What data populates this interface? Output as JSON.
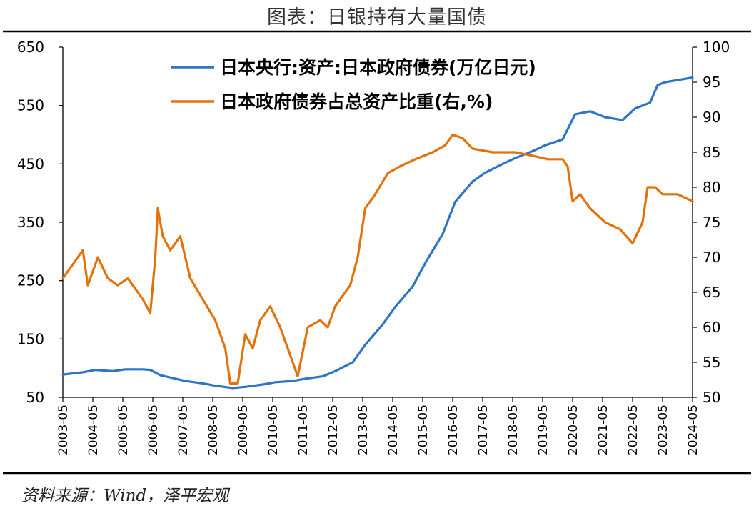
{
  "title": "图表：日银持有大量国债",
  "source": "资料来源：Wind，泽平宏观",
  "colors": {
    "series_assets": "#2E75C6",
    "series_ratio": "#E2730C",
    "axis": "#000000"
  },
  "chart_data": {
    "type": "line",
    "x_tick_labels": [
      "2003-05",
      "2004-05",
      "2005-05",
      "2006-05",
      "2007-05",
      "2008-05",
      "2009-05",
      "2010-05",
      "2011-05",
      "2012-05",
      "2013-05",
      "2014-05",
      "2015-05",
      "2016-05",
      "2017-05",
      "2018-05",
      "2019-05",
      "2020-05",
      "2021-05",
      "2022-05",
      "2023-05",
      "2024-05"
    ],
    "xlim": [
      "2003-05",
      "2024-05"
    ],
    "y_left": {
      "ylim": [
        50,
        650
      ],
      "ticks": [
        50,
        150,
        250,
        350,
        450,
        550,
        650
      ]
    },
    "y_right": {
      "ylim": [
        50,
        100
      ],
      "ticks": [
        50,
        55,
        60,
        65,
        70,
        75,
        80,
        85,
        90,
        95,
        100
      ]
    },
    "legend_position": "top-center",
    "series": [
      {
        "name": "日本央行:资产:日本政府债券(万亿日元)",
        "axis": "left",
        "points": [
          [
            "2003-05",
            89
          ],
          [
            "2004-01",
            93
          ],
          [
            "2004-06",
            97
          ],
          [
            "2005-01",
            95
          ],
          [
            "2005-06",
            98
          ],
          [
            "2006-01",
            98
          ],
          [
            "2006-04",
            97
          ],
          [
            "2006-08",
            88
          ],
          [
            "2007-01",
            83
          ],
          [
            "2007-06",
            78
          ],
          [
            "2008-01",
            74
          ],
          [
            "2008-06",
            70
          ],
          [
            "2009-01",
            66
          ],
          [
            "2009-06",
            68
          ],
          [
            "2010-01",
            72
          ],
          [
            "2010-06",
            76
          ],
          [
            "2011-01",
            78
          ],
          [
            "2011-06",
            82
          ],
          [
            "2012-01",
            86
          ],
          [
            "2012-06",
            95
          ],
          [
            "2013-01",
            110
          ],
          [
            "2013-06",
            140
          ],
          [
            "2014-01",
            175
          ],
          [
            "2014-06",
            205
          ],
          [
            "2015-01",
            240
          ],
          [
            "2015-06",
            280
          ],
          [
            "2016-01",
            330
          ],
          [
            "2016-06",
            385
          ],
          [
            "2017-01",
            420
          ],
          [
            "2017-06",
            435
          ],
          [
            "2018-01",
            450
          ],
          [
            "2018-06",
            460
          ],
          [
            "2019-01",
            472
          ],
          [
            "2019-06",
            482
          ],
          [
            "2020-01",
            492
          ],
          [
            "2020-06",
            535
          ],
          [
            "2020-12",
            540
          ],
          [
            "2021-06",
            530
          ],
          [
            "2022-01",
            525
          ],
          [
            "2022-06",
            545
          ],
          [
            "2022-12",
            555
          ],
          [
            "2023-03",
            585
          ],
          [
            "2023-06",
            590
          ],
          [
            "2024-01",
            595
          ],
          [
            "2024-05",
            598
          ]
        ]
      },
      {
        "name": "日本政府债券占总资产比重(右,%)",
        "axis": "right",
        "points": [
          [
            "2003-05",
            67
          ],
          [
            "2003-09",
            69
          ],
          [
            "2004-01",
            71
          ],
          [
            "2004-03",
            66
          ],
          [
            "2004-07",
            70
          ],
          [
            "2004-11",
            67
          ],
          [
            "2005-03",
            66
          ],
          [
            "2005-07",
            67
          ],
          [
            "2006-01",
            64
          ],
          [
            "2006-04",
            62
          ],
          [
            "2006-06",
            70
          ],
          [
            "2006-07",
            77
          ],
          [
            "2006-09",
            73
          ],
          [
            "2006-12",
            71
          ],
          [
            "2007-04",
            73
          ],
          [
            "2007-08",
            67
          ],
          [
            "2008-01",
            64
          ],
          [
            "2008-06",
            61
          ],
          [
            "2008-10",
            57
          ],
          [
            "2008-12",
            52
          ],
          [
            "2009-03",
            52
          ],
          [
            "2009-06",
            59
          ],
          [
            "2009-09",
            57
          ],
          [
            "2009-12",
            61
          ],
          [
            "2010-04",
            63
          ],
          [
            "2010-08",
            60
          ],
          [
            "2010-12",
            56
          ],
          [
            "2011-03",
            53
          ],
          [
            "2011-07",
            60
          ],
          [
            "2011-12",
            61
          ],
          [
            "2012-03",
            60
          ],
          [
            "2012-06",
            63
          ],
          [
            "2012-12",
            66
          ],
          [
            "2013-03",
            70
          ],
          [
            "2013-06",
            77
          ],
          [
            "2013-10",
            79
          ],
          [
            "2014-03",
            82
          ],
          [
            "2014-08",
            83
          ],
          [
            "2015-02",
            84
          ],
          [
            "2015-09",
            85
          ],
          [
            "2016-02",
            86
          ],
          [
            "2016-05",
            87.5
          ],
          [
            "2016-09",
            87
          ],
          [
            "2017-01",
            85.5
          ],
          [
            "2017-09",
            85
          ],
          [
            "2018-06",
            85
          ],
          [
            "2019-01",
            84.5
          ],
          [
            "2019-07",
            84
          ],
          [
            "2020-01",
            84
          ],
          [
            "2020-03",
            83
          ],
          [
            "2020-05",
            78
          ],
          [
            "2020-08",
            79
          ],
          [
            "2020-12",
            77
          ],
          [
            "2021-06",
            75
          ],
          [
            "2021-12",
            74
          ],
          [
            "2022-05",
            72
          ],
          [
            "2022-09",
            75
          ],
          [
            "2022-11",
            80
          ],
          [
            "2023-02",
            80
          ],
          [
            "2023-05",
            79
          ],
          [
            "2023-11",
            79
          ],
          [
            "2024-05",
            78
          ]
        ]
      }
    ]
  }
}
